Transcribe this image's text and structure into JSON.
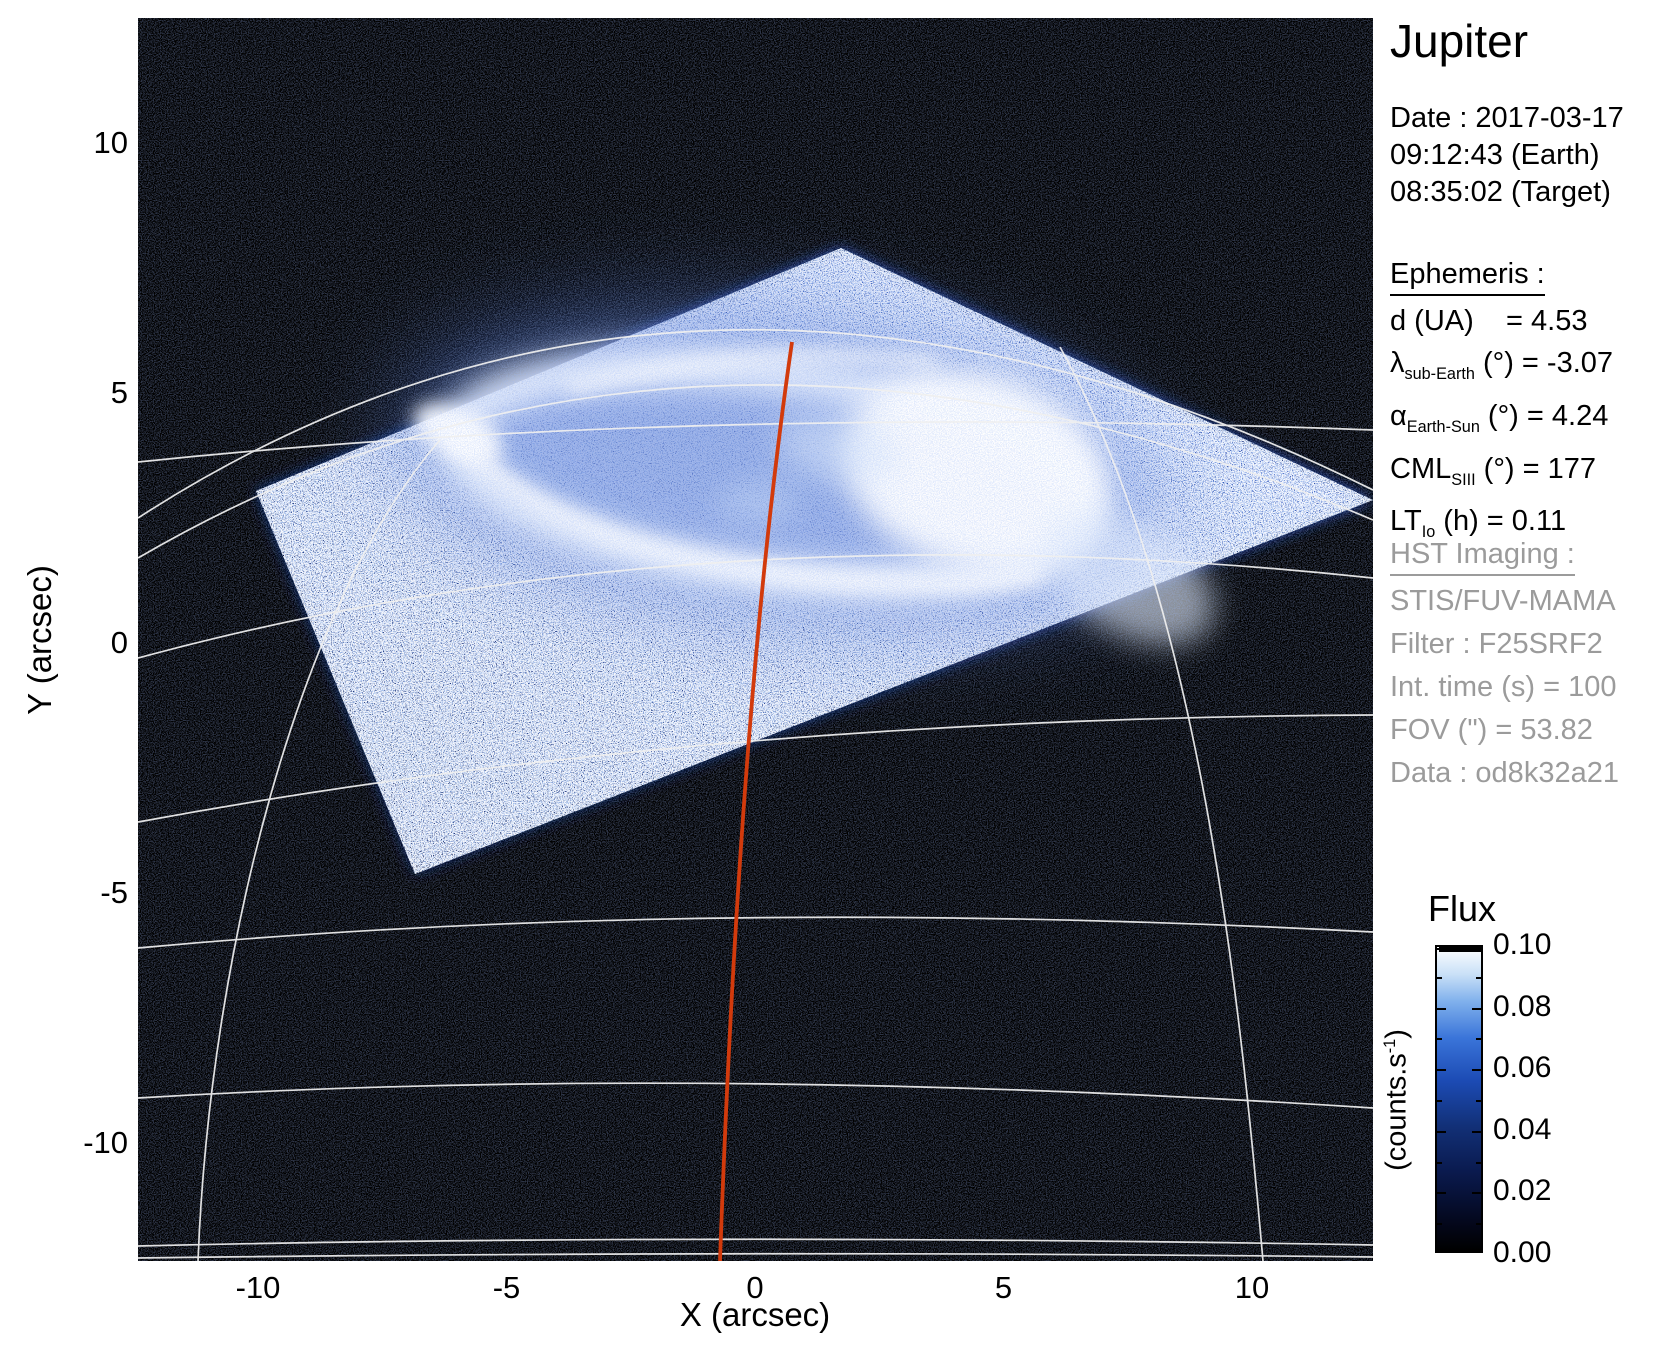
{
  "panel": {
    "title": "Jupiter",
    "date_lines": [
      "Date : 2017-03-17",
      "09:12:43 (Earth)",
      "08:35:02 (Target)"
    ],
    "ephemeris_header": "Ephemeris :",
    "ephemeris_lines": [
      [
        {
          "t": "d (UA)    = 4.53"
        }
      ],
      [
        {
          "t": "λ"
        },
        {
          "t": "sub-Earth",
          "sub": true
        },
        {
          "t": " (°) = -3.07"
        }
      ],
      [
        {
          "t": "α"
        },
        {
          "t": "Earth-Sun",
          "sub": true
        },
        {
          "t": " (°) = 4.24"
        }
      ],
      [
        {
          "t": "CML"
        },
        {
          "t": "SIII",
          "sub": true
        },
        {
          "t": " (°) = 177"
        }
      ],
      [
        {
          "t": "LT"
        },
        {
          "t": "Io",
          "sub": true
        },
        {
          "t": " (h) = 0.11"
        }
      ]
    ],
    "hst_header": "HST Imaging :",
    "hst_lines": [
      "STIS/FUV-MAMA",
      "Filter : F25SRF2",
      "Int. time (s) = 100",
      "FOV (\") = 53.82",
      "Data : od8k32a21"
    ]
  },
  "chart_data": {
    "type": "heatmap",
    "title": "Jupiter",
    "subtitle": "HST STIS/FUV-MAMA image of Jupiter north auroral region, 2017-03-17 09:12:43",
    "xlabel": "X (arcsec)",
    "ylabel": "Y (arcsec)",
    "xlim": [
      -12.4,
      12.4
    ],
    "ylim": [
      -12.3,
      12.5
    ],
    "grid": "planetary graticule (white latitude/longitude lines over planet disk)",
    "xticks": [
      {
        "v": -10,
        "label": "-10"
      },
      {
        "v": -5,
        "label": "-5"
      },
      {
        "v": 0,
        "label": "0"
      },
      {
        "v": 5,
        "label": "5"
      },
      {
        "v": 10,
        "label": "10"
      }
    ],
    "yticks": [
      {
        "v": 10,
        "label": "10"
      },
      {
        "v": 5,
        "label": "5"
      },
      {
        "v": 0,
        "label": "0"
      },
      {
        "v": -5,
        "label": "-5"
      },
      {
        "v": -10,
        "label": "-10"
      }
    ],
    "colorbar": {
      "title": "Flux",
      "unit_parts": [
        {
          "t": "(counts.s"
        },
        {
          "t": "-1",
          "sup": true
        },
        {
          "t": ")"
        }
      ],
      "range": [
        0.0,
        0.1
      ],
      "ticks": [
        {
          "v": 0.1,
          "label": "0.10"
        },
        {
          "v": 0.08,
          "label": "0.08"
        },
        {
          "v": 0.06,
          "label": "0.06"
        },
        {
          "v": 0.04,
          "label": "0.04"
        },
        {
          "v": 0.02,
          "label": "0.02"
        },
        {
          "v": 0.0,
          "label": "0.00"
        }
      ],
      "colormap": "black - dark blue - blue - white (linear)"
    },
    "image_content": {
      "detector_fov": "rotated square STIS field of view filled with blue photon noise, approx corners (arcsec): (-10.1,3.1), (1.8,8.0), (12.5,2.9), (-6.9,-4.6)",
      "aurora": "bright white main auroral oval near (0.4,5.0), approx 13 x 4 arcsec, brightest on right (dusk) side",
      "cml_meridian": "orange central meridian longitude line from aurora (0.7,6.1) to bottom of disk (-0.7,-12.2)",
      "graticule": "white latitude circles and meridians of rotating planet frame, north pole near the auroral oval"
    }
  },
  "colors": {
    "accent_meridian": "#d23a0c",
    "fov_blue": "#13307f",
    "panel_gray": "#9b9b9b",
    "background": "#ffffff",
    "plot_background": "#000000"
  }
}
